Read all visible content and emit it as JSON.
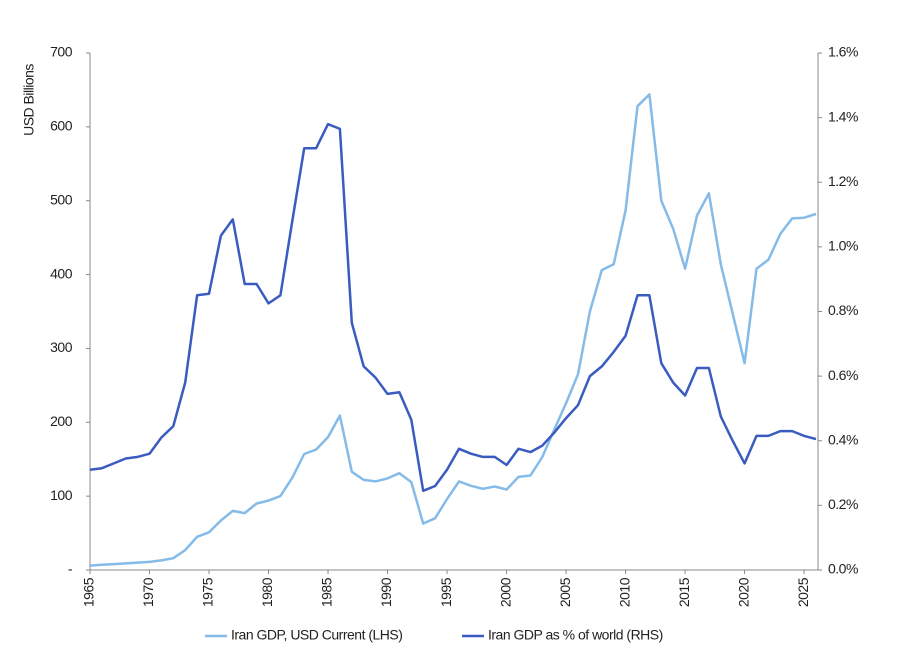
{
  "chart_data": {
    "type": "line",
    "ylabel": "USD Billions",
    "x": [
      1965,
      1966,
      1967,
      1968,
      1969,
      1970,
      1971,
      1972,
      1973,
      1974,
      1975,
      1976,
      1977,
      1978,
      1979,
      1980,
      1981,
      1982,
      1983,
      1984,
      1985,
      1986,
      1987,
      1988,
      1989,
      1990,
      1991,
      1992,
      1993,
      1994,
      1995,
      1996,
      1997,
      1998,
      1999,
      2000,
      2001,
      2002,
      2003,
      2004,
      2005,
      2006,
      2007,
      2008,
      2009,
      2010,
      2011,
      2012,
      2013,
      2014,
      2015,
      2016,
      2017,
      2018,
      2019,
      2020,
      2021,
      2022,
      2023,
      2024,
      2025,
      2026
    ],
    "xlim": [
      1965,
      2026
    ],
    "xticks": [
      1965,
      1970,
      1975,
      1980,
      1985,
      1990,
      1995,
      2000,
      2005,
      2010,
      2015,
      2020,
      2025
    ],
    "ylim": [
      0,
      700
    ],
    "yticks": [
      {
        "value": 0,
        "label": "-"
      },
      100,
      200,
      300,
      400,
      500,
      600,
      700
    ],
    "y2lim": [
      0,
      1.6
    ],
    "y2ticks": [
      {
        "value": 0,
        "label": "0.0%"
      },
      {
        "value": 0.2,
        "label": "0.2%"
      },
      {
        "value": 0.4,
        "label": "0.4%"
      },
      {
        "value": 0.6,
        "label": "0.6%"
      },
      {
        "value": 0.8,
        "label": "0.8%"
      },
      {
        "value": 1.0,
        "label": "1.0%"
      },
      {
        "value": 1.2,
        "label": "1.2%"
      },
      {
        "value": 1.4,
        "label": "1.4%"
      },
      {
        "value": 1.6,
        "label": "1.6%"
      }
    ],
    "legend": "bottom",
    "series": [
      {
        "name": "Iran GDP, USD Current (LHS)",
        "color": "#85bbe8",
        "values": [
          6,
          7,
          8,
          9,
          10,
          11,
          13,
          16,
          27,
          45,
          51,
          67,
          80,
          77,
          90,
          94,
          100,
          125,
          157,
          163,
          180,
          209,
          133,
          122,
          120,
          124,
          131,
          119,
          63,
          70,
          96,
          120,
          114,
          110,
          113,
          109,
          126,
          128,
          153,
          190,
          226,
          265,
          350,
          406,
          414,
          487,
          628,
          644,
          500,
          462,
          408,
          480,
          510,
          414,
          347,
          280,
          408,
          420,
          455,
          476,
          477,
          482
        ]
      },
      {
        "name": "Iran GDP as % of world (RHS)",
        "color": "#3a5cc0",
        "axis": "y2",
        "values": [
          0.31,
          0.315,
          0.33,
          0.345,
          0.35,
          0.36,
          0.41,
          0.445,
          0.58,
          0.85,
          0.855,
          1.035,
          1.085,
          0.885,
          0.885,
          0.825,
          0.85,
          1.08,
          1.305,
          1.305,
          1.38,
          1.365,
          0.765,
          0.63,
          0.595,
          0.545,
          0.55,
          0.465,
          0.245,
          0.26,
          0.31,
          0.375,
          0.36,
          0.35,
          0.35,
          0.325,
          0.375,
          0.365,
          0.385,
          0.425,
          0.47,
          0.51,
          0.6,
          0.63,
          0.675,
          0.725,
          0.85,
          0.85,
          0.64,
          0.58,
          0.54,
          0.625,
          0.625,
          0.475,
          0.4,
          0.33,
          0.415,
          0.415,
          0.43,
          0.43,
          0.415,
          0.405
        ]
      }
    ]
  }
}
